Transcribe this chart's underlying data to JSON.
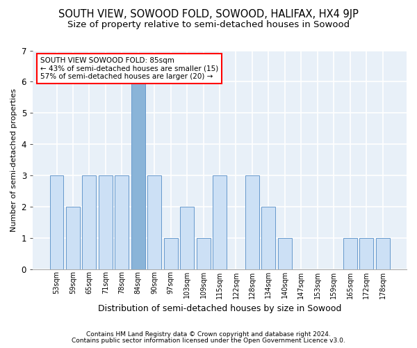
{
  "title": "SOUTH VIEW, SOWOOD FOLD, SOWOOD, HALIFAX, HX4 9JP",
  "subtitle": "Size of property relative to semi-detached houses in Sowood",
  "xlabel": "Distribution of semi-detached houses by size in Sowood",
  "ylabel": "Number of semi-detached properties",
  "footnote1": "Contains HM Land Registry data © Crown copyright and database right 2024.",
  "footnote2": "Contains public sector information licensed under the Open Government Licence v3.0.",
  "categories": [
    "53sqm",
    "59sqm",
    "65sqm",
    "71sqm",
    "78sqm",
    "84sqm",
    "90sqm",
    "97sqm",
    "103sqm",
    "109sqm",
    "115sqm",
    "122sqm",
    "128sqm",
    "134sqm",
    "140sqm",
    "147sqm",
    "153sqm",
    "159sqm",
    "165sqm",
    "172sqm",
    "178sqm"
  ],
  "values": [
    3,
    2,
    3,
    3,
    3,
    6,
    3,
    1,
    2,
    1,
    3,
    0,
    3,
    2,
    1,
    0,
    0,
    0,
    1,
    1,
    1
  ],
  "highlight_index": 5,
  "bar_color_normal": "#cce0f5",
  "bar_color_highlight": "#8ab4d8",
  "bar_edgecolor": "#6699cc",
  "annotation_title": "SOUTH VIEW SOWOOD FOLD: 85sqm",
  "annotation_line1": "← 43% of semi-detached houses are smaller (15)",
  "annotation_line2": "57% of semi-detached houses are larger (20) →",
  "ylim": [
    0,
    7
  ],
  "yticks": [
    0,
    1,
    2,
    3,
    4,
    5,
    6,
    7
  ],
  "background_color": "#ffffff",
  "plot_bg_color": "#e8f0f8",
  "grid_color": "#ffffff",
  "title_fontsize": 10.5,
  "subtitle_fontsize": 9.5,
  "annotation_box_edgecolor": "red",
  "ylabel_fontsize": 8,
  "xlabel_fontsize": 9
}
